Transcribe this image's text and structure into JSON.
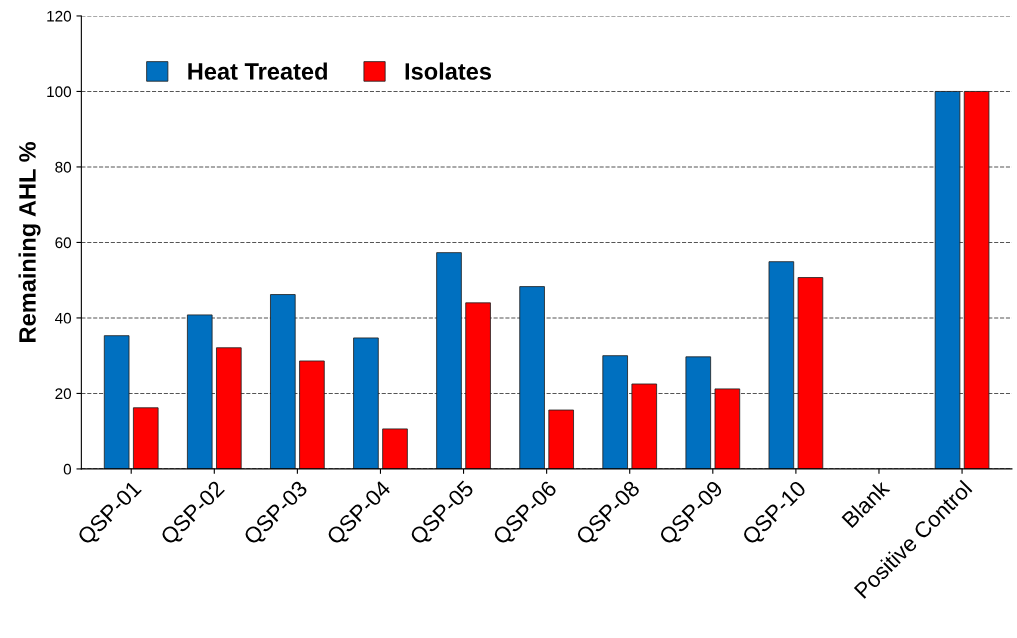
{
  "chart_data": {
    "type": "bar",
    "ylabel": "Remaining AHL %",
    "categories": [
      "QSP-01",
      "QSP-02",
      "QSP-03",
      "QSP-04",
      "QSP-05",
      "QSP-06",
      "QSP-08",
      "QSP-09",
      "QSP-10",
      "Blank",
      "Positive Control"
    ],
    "series": [
      {
        "name": "Heat Treated",
        "color": "#0070c0",
        "values": [
          35.3,
          40.8,
          46.2,
          34.7,
          57.3,
          48.3,
          30.0,
          29.7,
          54.9,
          null,
          100
        ]
      },
      {
        "name": "Isolates",
        "color": "#ff0000",
        "values": [
          16.2,
          32.1,
          28.6,
          10.6,
          44.0,
          15.6,
          22.5,
          21.2,
          50.7,
          null,
          100
        ]
      }
    ],
    "ylim": [
      0,
      120
    ],
    "yticks": [
      0,
      20,
      40,
      60,
      80,
      100,
      120
    ],
    "grid": "y",
    "legend": "top left"
  }
}
